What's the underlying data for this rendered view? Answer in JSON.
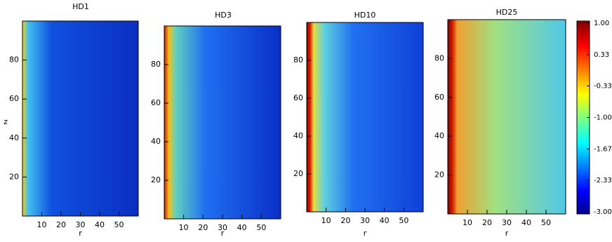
{
  "chart_data": [
    {
      "type": "heatmap",
      "title": "HD1",
      "xlabel": "r",
      "ylabel": "z",
      "xlim": [
        0,
        60
      ],
      "ylim": [
        0,
        100
      ],
      "xticks": [
        10,
        20,
        30,
        40,
        50
      ],
      "yticks": [
        20,
        40,
        60,
        80
      ]
    },
    {
      "type": "heatmap",
      "title": "HD3",
      "xlabel": "r",
      "xlim": [
        0,
        60
      ],
      "ylim": [
        0,
        100
      ],
      "xticks": [
        10,
        20,
        30,
        40,
        50
      ],
      "yticks": [
        20,
        40,
        60,
        80
      ]
    },
    {
      "type": "heatmap",
      "title": "HD10",
      "xlabel": "r",
      "xlim": [
        0,
        60
      ],
      "ylim": [
        0,
        100
      ],
      "xticks": [
        10,
        20,
        30,
        40,
        50
      ],
      "yticks": [
        20,
        40,
        60,
        80
      ]
    },
    {
      "type": "heatmap",
      "title": "HD25",
      "xlabel": "r",
      "xlim": [
        0,
        60
      ],
      "ylim": [
        0,
        100
      ],
      "xticks": [
        10,
        20,
        30,
        40,
        50
      ],
      "yticks": [
        20,
        40,
        60,
        80
      ]
    }
  ],
  "colorbar": {
    "range": [
      -3,
      1
    ],
    "ticks": [
      {
        "value": 1,
        "label": "1.00"
      },
      0.33,
      -0.33,
      {
        "value": -1,
        "label": "-1.00"
      },
      -1.67,
      -2.33,
      {
        "value": -3,
        "label": "-3.00"
      }
    ]
  }
}
